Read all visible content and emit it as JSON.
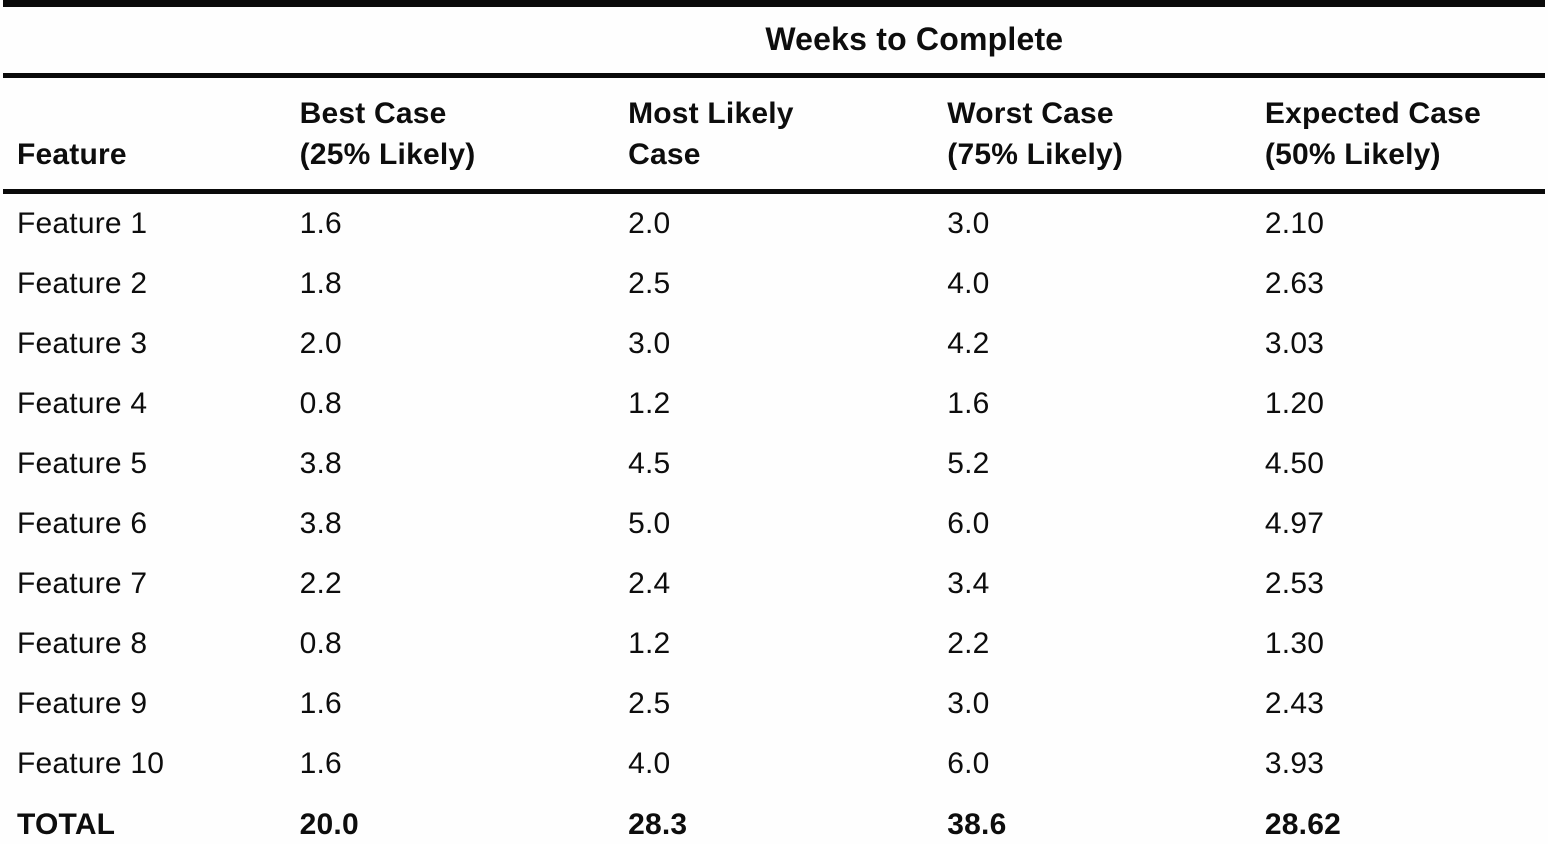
{
  "table": {
    "spanning_header": "Weeks to Complete",
    "columns": {
      "feature": "Feature",
      "best_line1": "Best Case",
      "best_line2": "(25% Likely)",
      "likely_line1": "Most Likely",
      "likely_line2": "Case",
      "worst_line1": "Worst Case",
      "worst_line2": "(75% Likely)",
      "expected_line1": "Expected Case",
      "expected_line2": "(50% Likely)"
    },
    "rows": [
      {
        "feature": "Feature 1",
        "best": "1.6",
        "likely": "2.0",
        "worst": "3.0",
        "expected": "2.10"
      },
      {
        "feature": "Feature 2",
        "best": "1.8",
        "likely": "2.5",
        "worst": "4.0",
        "expected": "2.63"
      },
      {
        "feature": "Feature 3",
        "best": "2.0",
        "likely": "3.0",
        "worst": "4.2",
        "expected": "3.03"
      },
      {
        "feature": "Feature 4",
        "best": "0.8",
        "likely": "1.2",
        "worst": "1.6",
        "expected": "1.20"
      },
      {
        "feature": "Feature 5",
        "best": "3.8",
        "likely": "4.5",
        "worst": "5.2",
        "expected": "4.50"
      },
      {
        "feature": "Feature 6",
        "best": "3.8",
        "likely": "5.0",
        "worst": "6.0",
        "expected": "4.97"
      },
      {
        "feature": "Feature 7",
        "best": "2.2",
        "likely": "2.4",
        "worst": "3.4",
        "expected": "2.53"
      },
      {
        "feature": "Feature 8",
        "best": "0.8",
        "likely": "1.2",
        "worst": "2.2",
        "expected": "1.30"
      },
      {
        "feature": "Feature 9",
        "best": "1.6",
        "likely": "2.5",
        "worst": "3.0",
        "expected": "2.43"
      },
      {
        "feature": "Feature 10",
        "best": "1.6",
        "likely": "4.0",
        "worst": "6.0",
        "expected": "3.93"
      }
    ],
    "total": {
      "feature": "TOTAL",
      "best": "20.0",
      "likely": "28.3",
      "worst": "38.6",
      "expected": "28.62"
    },
    "colors": {
      "rule": "#0a0a0a",
      "text": "#0d0d0d",
      "background": "#fefefe"
    }
  }
}
